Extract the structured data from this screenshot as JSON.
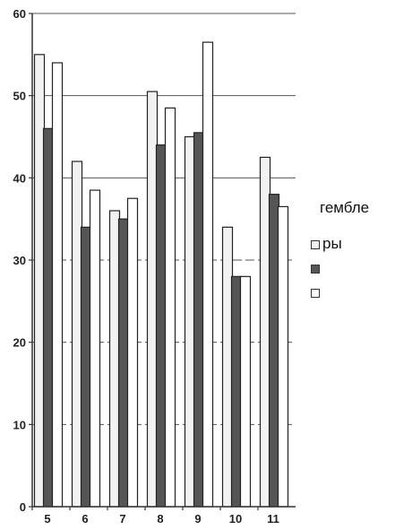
{
  "colors": {
    "series_1": "#f2f2f2",
    "series_2": "#555555",
    "series_3": "#ffffff",
    "axis": "#333333",
    "grid": "#555555"
  },
  "annotations": {
    "text_1": "гембле",
    "text_2": "ры"
  },
  "chart_data": {
    "type": "bar",
    "title": "",
    "xlabel": "",
    "ylabel": "",
    "categories": [
      "5",
      "6",
      "7",
      "8",
      "9",
      "10",
      "11"
    ],
    "series": [
      {
        "values": [
          55,
          42,
          36,
          50.5,
          45,
          34,
          42.5
        ]
      },
      {
        "values": [
          46,
          34,
          35,
          44,
          45.5,
          28,
          38
        ]
      },
      {
        "values": [
          54,
          38.5,
          37.5,
          48.5,
          56.5,
          28,
          36.5
        ]
      }
    ],
    "yticks": [
      "0",
      "10",
      "20",
      "30",
      "40",
      "50",
      "60"
    ],
    "ylim": [
      0,
      60
    ],
    "grid": true,
    "legend_placement": "right"
  }
}
